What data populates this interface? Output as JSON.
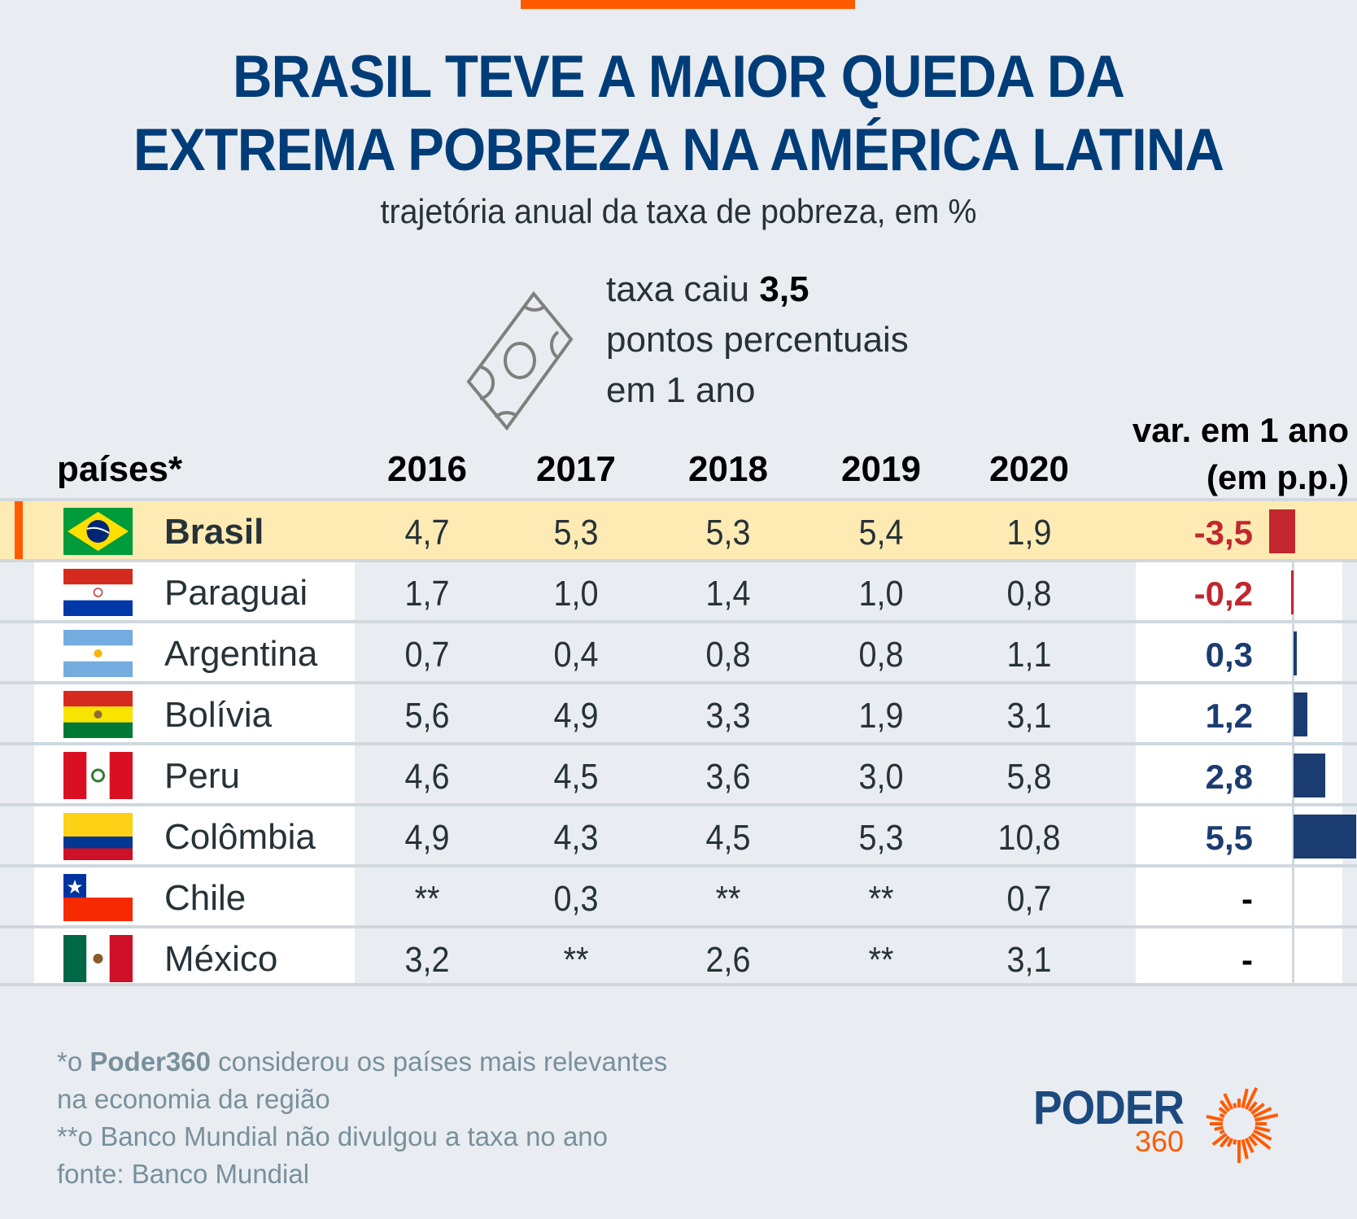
{
  "header": {
    "title_line1": "BRASIL TEVE A MAIOR QUEDA DA",
    "title_line2": "EXTREMA POBREZA NA AMÉRICA LATINA",
    "subtitle": "trajetória anual da taxa de pobreza, em %"
  },
  "callout": {
    "icon": "banknote-icon",
    "line1_prefix": "taxa caiu ",
    "line1_value": "3,5",
    "line2": "pontos percentuais",
    "line3": "em 1 ano"
  },
  "colors": {
    "title": "#003d78",
    "accent": "#ff5a00",
    "highlight_row": "#feebb4",
    "negative": "#c1272d",
    "positive": "#1b3c70"
  },
  "chart_data": {
    "type": "table",
    "title": "BRASIL TEVE A MAIOR QUEDA DA EXTREMA POBREZA NA AMÉRICA LATINA",
    "subtitle": "trajetória anual da taxa de pobreza, em %",
    "columns": [
      "países*",
      "2016",
      "2017",
      "2018",
      "2019",
      "2020",
      "var. em 1 ano (em p.p.)"
    ],
    "country_header": "países*",
    "years": [
      "2016",
      "2017",
      "2018",
      "2019",
      "2020"
    ],
    "var_header_line1": "var. em 1 ano",
    "var_header_line2": "(em p.p.)",
    "rows": [
      {
        "country": "Brasil",
        "flag": "brazil-flag",
        "highlight": true,
        "values": [
          "4,7",
          "5,3",
          "5,3",
          "5,4",
          "1,9"
        ],
        "var_label": "-3,5",
        "var": -3.5
      },
      {
        "country": "Paraguai",
        "flag": "paraguay-flag",
        "highlight": false,
        "values": [
          "1,7",
          "1,0",
          "1,4",
          "1,0",
          "0,8"
        ],
        "var_label": "-0,2",
        "var": -0.2
      },
      {
        "country": "Argentina",
        "flag": "argentina-flag",
        "highlight": false,
        "values": [
          "0,7",
          "0,4",
          "0,8",
          "0,8",
          "1,1"
        ],
        "var_label": "0,3",
        "var": 0.3
      },
      {
        "country": "Bolívia",
        "flag": "bolivia-flag",
        "highlight": false,
        "values": [
          "5,6",
          "4,9",
          "3,3",
          "1,9",
          "3,1"
        ],
        "var_label": "1,2",
        "var": 1.2
      },
      {
        "country": "Peru",
        "flag": "peru-flag",
        "highlight": false,
        "values": [
          "4,6",
          "4,5",
          "3,6",
          "3,0",
          "5,8"
        ],
        "var_label": "2,8",
        "var": 2.8
      },
      {
        "country": "Colômbia",
        "flag": "colombia-flag",
        "highlight": false,
        "values": [
          "4,9",
          "4,3",
          "4,5",
          "5,3",
          "10,8"
        ],
        "var_label": "5,5",
        "var": 5.5
      },
      {
        "country": "Chile",
        "flag": "chile-flag",
        "highlight": false,
        "values": [
          "**",
          "0,3",
          "**",
          "**",
          "0,7"
        ],
        "var_label": "-",
        "var": null
      },
      {
        "country": "México",
        "flag": "mexico-flag",
        "highlight": false,
        "values": [
          "3,2",
          "**",
          "2,6",
          "**",
          "3,1"
        ],
        "var_label": "-",
        "var": null
      }
    ]
  },
  "notes": {
    "line1_prefix": "*o ",
    "line1_bold": "Poder360",
    "line1_suffix": " considerou os países mais relevantes",
    "line2": "na economia da região",
    "line3": "**o Banco Mundial não divulgou a taxa no ano",
    "line4": "fonte: Banco Mundial"
  },
  "logo": {
    "name": "PODER",
    "number": "360"
  }
}
